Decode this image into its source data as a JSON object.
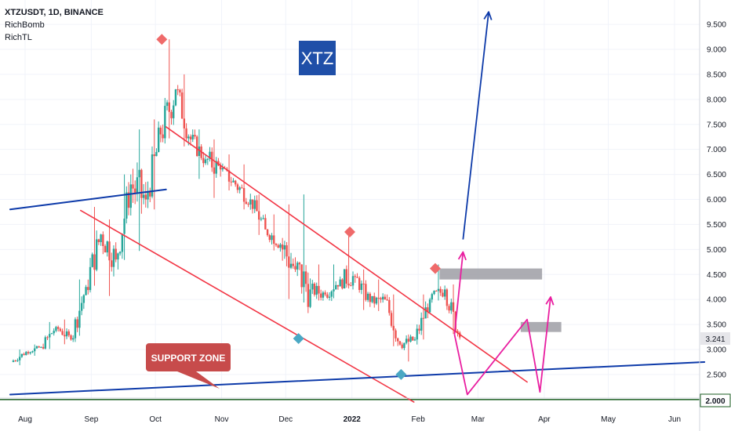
{
  "legend": {
    "symbol_line": "XTZUSDT, 1D, BINANCE",
    "indicator_1": "RichBomb",
    "indicator_2": "RichTL"
  },
  "annotations": {
    "title_badge": "XTZ",
    "support_label": "SUPPORT ZONE"
  },
  "price_labels": {
    "current": "3.241",
    "support": "2.000"
  },
  "colors": {
    "up_candle": "#26a69a",
    "down_candle": "#ef5350",
    "trendline_red": "#f23645",
    "trendline_blue": "#0d3aa9",
    "support_line": "#1b5e20",
    "projection_magenta": "#e91ea0",
    "badge_blue": "#1f4fa8",
    "badge_red": "#c74b4b",
    "zone_gray": "#9e9ea4"
  },
  "chart_data": {
    "type": "candlestick",
    "symbol": "XTZUSDT",
    "timeframe": "1D",
    "exchange": "BINANCE",
    "x_ticks": [
      "Aug",
      "Sep",
      "Oct",
      "Nov",
      "Dec",
      "2022",
      "Feb",
      "Mar",
      "Apr",
      "May",
      "Jun"
    ],
    "y_ticks": [
      "2.500",
      "3.000",
      "3.500",
      "4.000",
      "4.500",
      "5.000",
      "5.500",
      "6.000",
      "6.500",
      "7.000",
      "7.500",
      "8.000",
      "8.500",
      "9.000",
      "9.500"
    ],
    "ylim": [
      1.9,
      9.95
    ],
    "current_price": 3.241,
    "support_level": 2.0,
    "channel_upper": {
      "from": [
        "2021-10-06",
        7.45
      ],
      "to": [
        "2022-03-24",
        2.35
      ]
    },
    "channel_lower": {
      "from": [
        "2021-08-27",
        5.78
      ],
      "to": [
        "2022-01-30",
        1.95
      ]
    },
    "ascending_trendline": {
      "from": [
        "2021-07-25",
        2.1
      ],
      "to": [
        "2022-06-15",
        2.75
      ]
    },
    "upper_trendline": {
      "from": [
        "2021-07-25",
        5.8
      ],
      "to": [
        "2021-10-06",
        6.2
      ]
    },
    "resistance_zones": [
      {
        "from": "2022-02-11",
        "to": "2022-03-31",
        "low": 4.4,
        "high": 4.62
      },
      {
        "from": "2022-03-21",
        "to": "2022-04-09",
        "low": 3.35,
        "high": 3.55
      }
    ],
    "peak_markers": [
      [
        "2021-10-04",
        9.2
      ],
      [
        "2021-12-31",
        5.35
      ],
      [
        "2022-02-09",
        4.62
      ]
    ],
    "trough_markers": [
      [
        "2021-12-07",
        3.22
      ],
      [
        "2022-01-24",
        2.5
      ]
    ],
    "projections": [
      {
        "label": "bullish",
        "points": [
          [
            "2022-02-22",
            5.2
          ],
          [
            "2022-03-06",
            9.75
          ]
        ]
      },
      {
        "label": "scenario_1",
        "points": [
          [
            "2022-02-18",
            3.3
          ],
          [
            "2022-02-24",
            2.1
          ],
          [
            "2022-03-24",
            3.6
          ],
          [
            "2022-03-30",
            2.15
          ],
          [
            "2022-04-04",
            4.05
          ]
        ]
      },
      {
        "label": "scenario_2",
        "points": [
          [
            "2022-02-18",
            3.3
          ],
          [
            "2022-02-22",
            4.95
          ]
        ]
      }
    ],
    "candles_ohlc_weekly_approx": [
      [
        "2021-07-26",
        2.75,
        3.0,
        2.65,
        2.95
      ],
      [
        "2021-08-02",
        2.95,
        3.1,
        2.85,
        3.05
      ],
      [
        "2021-08-09",
        3.05,
        3.55,
        2.95,
        3.45
      ],
      [
        "2021-08-16",
        3.45,
        3.6,
        3.05,
        3.2
      ],
      [
        "2021-08-23",
        3.2,
        4.4,
        3.15,
        4.25
      ],
      [
        "2021-08-30",
        4.25,
        5.85,
        4.1,
        5.3
      ],
      [
        "2021-09-06",
        5.3,
        5.6,
        3.9,
        4.8
      ],
      [
        "2021-09-13",
        4.8,
        6.5,
        4.6,
        6.3
      ],
      [
        "2021-09-20",
        6.3,
        7.4,
        4.7,
        6.0
      ],
      [
        "2021-09-27",
        6.0,
        7.6,
        5.6,
        7.3
      ],
      [
        "2021-10-04",
        7.3,
        9.2,
        7.0,
        8.2
      ],
      [
        "2021-10-11",
        8.2,
        8.5,
        6.9,
        7.2
      ],
      [
        "2021-10-18",
        7.2,
        7.4,
        6.3,
        6.8
      ],
      [
        "2021-10-25",
        6.8,
        7.2,
        5.9,
        6.6
      ],
      [
        "2021-11-01",
        6.6,
        6.9,
        6.1,
        6.3
      ],
      [
        "2021-11-08",
        6.3,
        6.7,
        5.7,
        6.0
      ],
      [
        "2021-11-15",
        6.0,
        6.1,
        5.2,
        5.4
      ],
      [
        "2021-11-22",
        5.4,
        5.7,
        4.9,
        5.1
      ],
      [
        "2021-11-29",
        5.1,
        5.9,
        3.8,
        4.6
      ],
      [
        "2021-12-06",
        4.6,
        6.1,
        3.7,
        4.2
      ],
      [
        "2021-12-13",
        4.2,
        4.7,
        3.9,
        4.1
      ],
      [
        "2021-12-20",
        4.1,
        4.7,
        3.95,
        4.4
      ],
      [
        "2021-12-27",
        4.4,
        5.3,
        4.2,
        4.45
      ],
      [
        "2022-01-03",
        4.45,
        4.6,
        3.7,
        3.95
      ],
      [
        "2022-01-10",
        3.95,
        4.4,
        3.7,
        4.0
      ],
      [
        "2022-01-17",
        4.0,
        4.1,
        2.95,
        3.1
      ],
      [
        "2022-01-24",
        3.1,
        3.3,
        2.7,
        3.2
      ],
      [
        "2022-01-31",
        3.2,
        4.1,
        3.1,
        4.0
      ],
      [
        "2022-02-07",
        4.0,
        4.7,
        3.9,
        4.2
      ],
      [
        "2022-02-14",
        4.2,
        4.3,
        3.2,
        3.241
      ]
    ]
  }
}
